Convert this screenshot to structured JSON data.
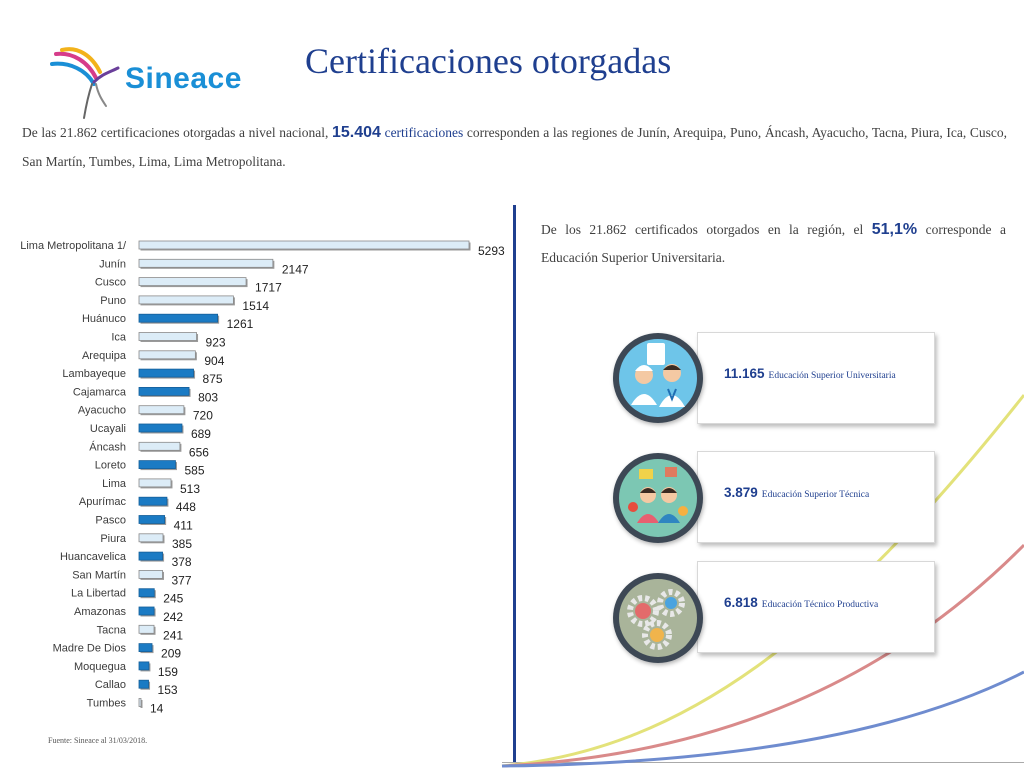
{
  "brand": {
    "name": "Sineace"
  },
  "title": "Certificaciones otorgadas",
  "intro": {
    "part1": "De las 21.862 certificaciones otorgadas a nivel nacional,",
    "highlight_number": "15.404",
    "highlight_word": "certificaciones",
    "part2": "corresponden a las regiones de Junín, Arequipa, Puno, Áncash, Ayacucho, Tacna, Piura, Ica, Cusco, San Martín, Tumbes, Lima, Lima Metropolitana."
  },
  "right_note": {
    "part1": "De los 21.862 certificados otorgados en la región, el",
    "highlight": "51,1%",
    "part2": "corresponde a Educación Superior Universitaria."
  },
  "cards": [
    {
      "number": "11.165",
      "label": "Educación Superior Universitaria",
      "icon": "medical-staff-icon"
    },
    {
      "number": "3.879",
      "label": "Educación Superior Técnica",
      "icon": "students-icon"
    },
    {
      "number": "6.818",
      "label": "Educación Técnico Productiva",
      "icon": "gears-icon"
    }
  ],
  "source": "Fuente: Sineace al 31/03/2018.",
  "colors": {
    "title_blue": "#1f3f8f",
    "bar_blue": "#1b7bc4",
    "bar_light": "#dcecf7",
    "curve_yellow": "#e3e27a",
    "curve_red": "#d98a8a",
    "curve_blue": "#6f8ccf"
  },
  "chart_data": {
    "type": "bar",
    "orientation": "horizontal",
    "categories": [
      "Lima Metropolitana 1/",
      "Junín",
      "Cusco",
      "Puno",
      "Huánuco",
      "Ica",
      "Arequipa",
      "Lambayeque",
      "Cajamarca",
      "Ayacucho",
      "Ucayali",
      "Áncash",
      "Loreto",
      "Lima",
      "Apurímac",
      "Pasco",
      "Piura",
      "Huancavelica",
      "San Martín",
      "La Libertad",
      "Amazonas",
      "Tacna",
      "Madre De Dios",
      "Moquegua",
      "Callao",
      "Tumbes"
    ],
    "values": [
      5293,
      2147,
      1717,
      1514,
      1261,
      923,
      904,
      875,
      803,
      720,
      689,
      656,
      585,
      513,
      448,
      411,
      385,
      378,
      377,
      245,
      242,
      241,
      209,
      159,
      153,
      14
    ],
    "highlighted": [
      false,
      false,
      false,
      false,
      true,
      false,
      false,
      true,
      true,
      false,
      true,
      false,
      true,
      false,
      true,
      true,
      false,
      true,
      false,
      true,
      true,
      false,
      true,
      true,
      true,
      false
    ],
    "title": "",
    "xlabel": "",
    "ylabel": ""
  }
}
